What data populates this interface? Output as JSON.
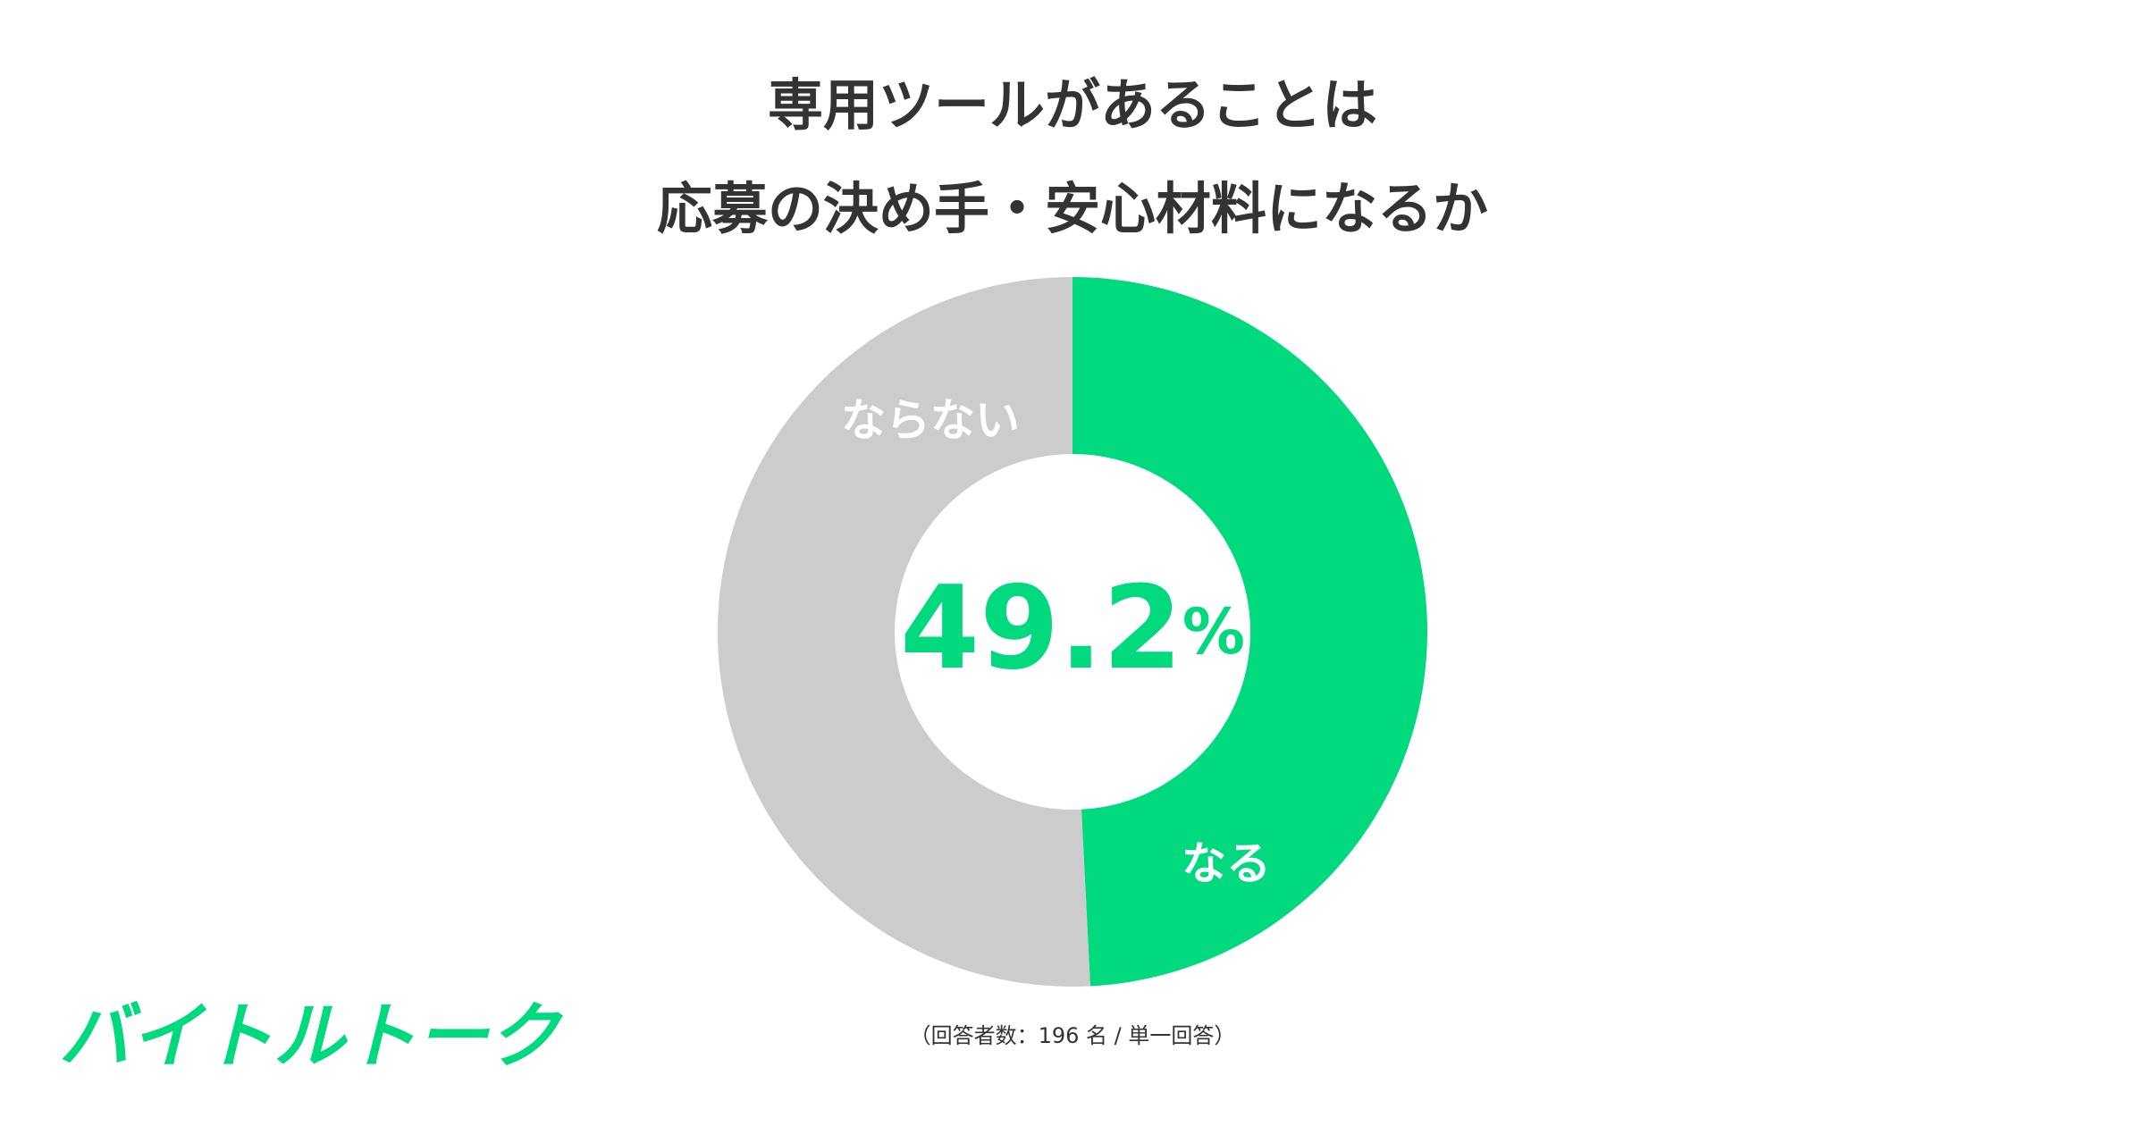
{
  "chart_data": {
    "type": "donut",
    "title_lines": [
      "専用ツールがあることは",
      "応募の決め手・安心材料になるか"
    ],
    "categories": [
      "なる",
      "ならない"
    ],
    "values": [
      49.2,
      50.8
    ],
    "value_labels": [
      "49.2%",
      null
    ],
    "colors": [
      "#00d97e",
      "#cccccc"
    ],
    "note": "（回答者数：196 名 / 単一回答）",
    "logo": "バイトルトーク"
  }
}
